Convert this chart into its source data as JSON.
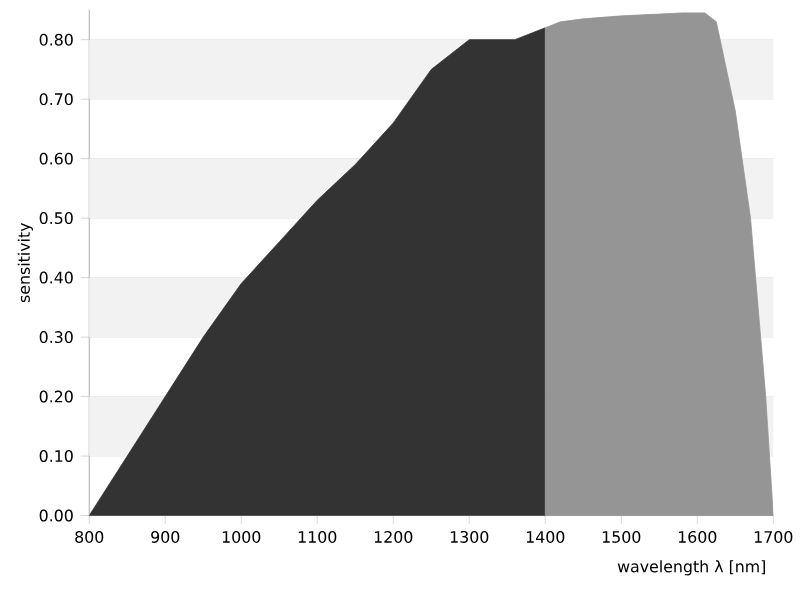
{
  "chart_data": {
    "type": "area",
    "xlabel": "wavelength λ [nm]",
    "ylabel": "sensitivity",
    "xlim": [
      800,
      1700
    ],
    "ylim": [
      0,
      0.85
    ],
    "xticks": [
      800,
      900,
      1000,
      1100,
      1200,
      1300,
      1400,
      1500,
      1600,
      1700
    ],
    "yticks": [
      {
        "value": 0,
        "label": "0.00"
      },
      {
        "value": 0.1,
        "label": "0.10"
      },
      {
        "value": 0.2,
        "label": "0.20"
      },
      {
        "value": 0.3,
        "label": "0.30"
      },
      {
        "value": 0.4,
        "label": "0.40"
      },
      {
        "value": 0.5,
        "label": "0.50"
      },
      {
        "value": 0.6,
        "label": "0.60"
      },
      {
        "value": 0.7,
        "label": "0.70"
      },
      {
        "value": 0.8,
        "label": "0.80"
      }
    ],
    "grid": "y",
    "bands": [
      {
        "axis": "y",
        "from": 0.1,
        "to": 0.2,
        "color": "#f2f2f2"
      },
      {
        "axis": "y",
        "from": 0.3,
        "to": 0.4,
        "color": "#f2f2f2"
      },
      {
        "axis": "y",
        "from": 0.5,
        "to": 0.6,
        "color": "#f2f2f2"
      },
      {
        "axis": "y",
        "from": 0.7,
        "to": 0.8,
        "color": "#f2f2f2"
      }
    ],
    "series": [
      {
        "color": "#333333",
        "x": [
          800,
          850,
          900,
          950,
          1000,
          1050,
          1100,
          1150,
          1200,
          1250,
          1300,
          1360,
          1400
        ],
        "values": [
          0.0,
          0.1,
          0.2,
          0.3,
          0.39,
          0.46,
          0.53,
          0.59,
          0.66,
          0.75,
          0.8,
          0.8,
          0.82
        ]
      },
      {
        "color": "#959595",
        "x": [
          1400,
          1420,
          1450,
          1500,
          1550,
          1580,
          1610,
          1625,
          1650,
          1670,
          1690,
          1700
        ],
        "values": [
          0.82,
          0.83,
          0.835,
          0.84,
          0.843,
          0.845,
          0.845,
          0.83,
          0.68,
          0.5,
          0.2,
          0.0
        ]
      }
    ]
  }
}
